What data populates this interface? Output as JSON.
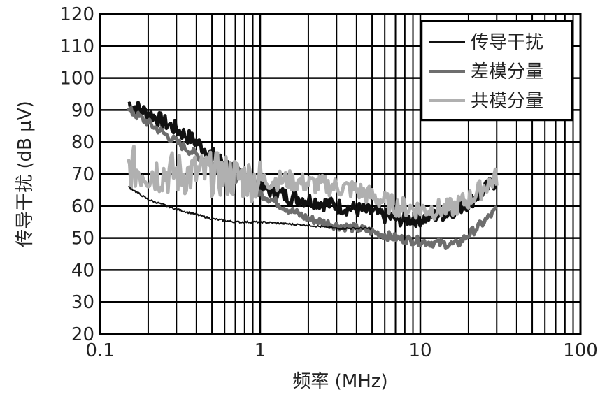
{
  "chart_data": {
    "type": "line",
    "title": "",
    "xlabel": "频率 (MHz)",
    "ylabel": "传导干扰 (dB μV)",
    "xscale": "log",
    "xlim": [
      0.1,
      100
    ],
    "ylim": [
      20,
      120
    ],
    "x_ticks": [
      0.1,
      1,
      10,
      100
    ],
    "x_tick_labels": [
      "0.1",
      "1",
      "10",
      "100"
    ],
    "y_ticks": [
      20,
      30,
      40,
      50,
      60,
      70,
      80,
      90,
      100,
      110,
      120
    ],
    "y_tick_labels": [
      "20",
      "30",
      "40",
      "50",
      "60",
      "70",
      "80",
      "90",
      "100",
      "110",
      "120"
    ],
    "grid": true,
    "legend_position": "top-right",
    "series": [
      {
        "name": "传导干扰",
        "color": "#111111",
        "x": [
          0.15,
          0.2,
          0.3,
          0.4,
          0.5,
          0.7,
          1.0,
          1.5,
          2.0,
          3.0,
          4.0,
          5.0,
          7.0,
          10.0,
          15.0,
          20.0,
          25.0,
          30.0
        ],
        "y": [
          92,
          89,
          84,
          80,
          76,
          71,
          66,
          63,
          62,
          60,
          59,
          58,
          56,
          56,
          58,
          61,
          65,
          68
        ]
      },
      {
        "name": "差模分量",
        "color": "#6e6e6e",
        "x": [
          0.15,
          0.2,
          0.3,
          0.4,
          0.5,
          0.7,
          1.0,
          1.5,
          2.0,
          3.0,
          4.0,
          5.0,
          7.0,
          10.0,
          15.0,
          17.0,
          20.0,
          25.0,
          30.0
        ],
        "y": [
          90,
          86,
          80,
          76,
          73,
          69,
          64,
          59,
          56,
          54,
          53,
          52,
          50,
          49,
          48,
          48,
          51,
          55,
          59
        ]
      },
      {
        "name": "共模分量",
        "color": "#b0b0b0",
        "x": [
          0.15,
          0.2,
          0.3,
          0.4,
          0.5,
          0.7,
          1.0,
          1.5,
          2.0,
          3.0,
          4.0,
          5.0,
          7.0,
          10.0,
          15.0,
          20.0,
          25.0,
          30.0
        ],
        "y": [
          72,
          71,
          70,
          70,
          70,
          69,
          68,
          68,
          67,
          66,
          65,
          63,
          60,
          59,
          59,
          62,
          66,
          69
        ]
      },
      {
        "color": "#111111",
        "x": [
          0.15,
          0.2,
          0.3,
          0.5,
          0.7,
          1.0,
          2.0,
          3.0,
          4.0,
          5.0
        ],
        "y": [
          66,
          62,
          59,
          56,
          55,
          55,
          54,
          53,
          53,
          53
        ]
      }
    ]
  }
}
